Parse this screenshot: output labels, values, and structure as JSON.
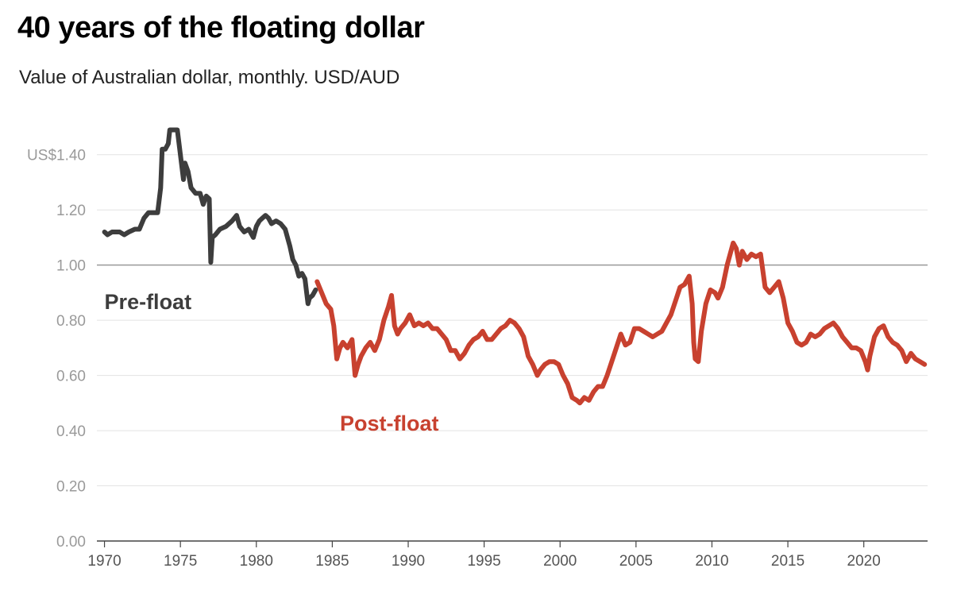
{
  "header": {
    "title": "40 years of the floating dollar",
    "subtitle": "Value of Australian dollar, monthly. USD/AUD"
  },
  "colors": {
    "pre_float": "#3d3d3d",
    "post_float": "#c8412f",
    "grid": "#e3e3e3",
    "reference": "#999999"
  },
  "chart_data": {
    "type": "line",
    "title": "40 years of the floating dollar",
    "subtitle": "Value of Australian dollar, monthly. USD/AUD",
    "xlabel": "",
    "ylabel": "",
    "xlim": [
      1969.5,
      2024.2
    ],
    "ylim": [
      0,
      1.5
    ],
    "y_ticks": [
      0.0,
      0.2,
      0.4,
      0.6,
      0.8,
      1.0,
      1.2,
      1.4
    ],
    "y_tick_labels": [
      "0.00",
      "0.20",
      "0.40",
      "0.60",
      "0.80",
      "1.00",
      "1.20",
      "US$1.40"
    ],
    "x_ticks": [
      1970,
      1975,
      1980,
      1985,
      1990,
      1995,
      2000,
      2005,
      2010,
      2015,
      2020
    ],
    "x_tick_labels": [
      "1970",
      "1975",
      "1980",
      "1985",
      "1990",
      "1995",
      "2000",
      "2005",
      "2010",
      "2015",
      "2020"
    ],
    "reference_line": 1.0,
    "annotations": [
      {
        "text": "Pre-float",
        "series": "Pre-float",
        "x": 1970.0,
        "y": 0.84
      },
      {
        "text": "Post-float",
        "series": "Post-float",
        "x": 1985.5,
        "y": 0.4
      }
    ],
    "series": [
      {
        "name": "Pre-float",
        "color": "#3d3d3d",
        "x": [
          1970.0,
          1970.2,
          1970.5,
          1971.0,
          1971.3,
          1971.6,
          1972.0,
          1972.3,
          1972.6,
          1972.9,
          1973.2,
          1973.5,
          1973.7,
          1973.8,
          1974.0,
          1974.2,
          1974.3,
          1974.5,
          1974.8,
          1975.2,
          1975.3,
          1975.5,
          1975.7,
          1976.0,
          1976.3,
          1976.5,
          1976.7,
          1976.9,
          1977.0,
          1977.1,
          1977.3,
          1977.6,
          1978.0,
          1978.4,
          1978.7,
          1978.9,
          1979.2,
          1979.5,
          1979.8,
          1980.0,
          1980.2,
          1980.4,
          1980.6,
          1980.8,
          1981.0,
          1981.3,
          1981.6,
          1981.9,
          1982.2,
          1982.4,
          1982.6,
          1982.8,
          1983.0,
          1983.2,
          1983.4,
          1983.5,
          1983.7,
          1983.9
        ],
        "values": [
          1.12,
          1.11,
          1.12,
          1.12,
          1.11,
          1.12,
          1.13,
          1.13,
          1.17,
          1.19,
          1.19,
          1.19,
          1.28,
          1.42,
          1.42,
          1.44,
          1.49,
          1.49,
          1.49,
          1.31,
          1.37,
          1.34,
          1.28,
          1.26,
          1.26,
          1.22,
          1.25,
          1.24,
          1.01,
          1.1,
          1.11,
          1.13,
          1.14,
          1.16,
          1.18,
          1.14,
          1.12,
          1.13,
          1.1,
          1.14,
          1.16,
          1.17,
          1.18,
          1.17,
          1.15,
          1.16,
          1.15,
          1.13,
          1.07,
          1.02,
          1.0,
          0.96,
          0.97,
          0.95,
          0.86,
          0.88,
          0.89,
          0.91
        ]
      },
      {
        "name": "Post-float",
        "color": "#c8412f",
        "x": [
          1984.0,
          1984.3,
          1984.6,
          1984.9,
          1985.1,
          1985.3,
          1985.5,
          1985.7,
          1986.0,
          1986.3,
          1986.5,
          1986.7,
          1986.9,
          1987.2,
          1987.5,
          1987.8,
          1988.1,
          1988.4,
          1988.7,
          1988.9,
          1989.1,
          1989.3,
          1989.5,
          1989.8,
          1990.1,
          1990.4,
          1990.7,
          1991.0,
          1991.3,
          1991.6,
          1991.9,
          1992.2,
          1992.5,
          1992.8,
          1993.1,
          1993.4,
          1993.7,
          1994.0,
          1994.3,
          1994.6,
          1994.9,
          1995.2,
          1995.5,
          1995.8,
          1996.1,
          1996.4,
          1996.7,
          1997.0,
          1997.3,
          1997.6,
          1997.9,
          1998.2,
          1998.5,
          1998.7,
          1999.0,
          1999.3,
          1999.6,
          1999.9,
          2000.2,
          2000.5,
          2000.8,
          2001.1,
          2001.3,
          2001.6,
          2001.9,
          2002.2,
          2002.5,
          2002.8,
          2003.1,
          2003.4,
          2003.7,
          2004.0,
          2004.3,
          2004.6,
          2004.9,
          2005.2,
          2005.5,
          2005.8,
          2006.1,
          2006.4,
          2006.7,
          2007.0,
          2007.3,
          2007.6,
          2007.9,
          2008.2,
          2008.5,
          2008.7,
          2008.8,
          2008.9,
          2009.1,
          2009.3,
          2009.6,
          2009.9,
          2010.2,
          2010.4,
          2010.7,
          2011.0,
          2011.2,
          2011.4,
          2011.6,
          2011.8,
          2012.0,
          2012.3,
          2012.6,
          2012.9,
          2013.2,
          2013.5,
          2013.8,
          2014.1,
          2014.4,
          2014.7,
          2015.0,
          2015.3,
          2015.6,
          2015.9,
          2016.2,
          2016.5,
          2016.8,
          2017.1,
          2017.4,
          2017.7,
          2018.0,
          2018.3,
          2018.6,
          2018.9,
          2019.2,
          2019.5,
          2019.8,
          2020.1,
          2020.25,
          2020.4,
          2020.7,
          2021.0,
          2021.3,
          2021.6,
          2021.9,
          2022.2,
          2022.5,
          2022.8,
          2023.1,
          2023.4,
          2023.7,
          2024.0
        ],
        "values": [
          0.94,
          0.9,
          0.86,
          0.84,
          0.78,
          0.66,
          0.7,
          0.72,
          0.7,
          0.73,
          0.6,
          0.64,
          0.67,
          0.7,
          0.72,
          0.69,
          0.73,
          0.8,
          0.85,
          0.89,
          0.78,
          0.75,
          0.77,
          0.79,
          0.82,
          0.78,
          0.79,
          0.78,
          0.79,
          0.77,
          0.77,
          0.75,
          0.73,
          0.69,
          0.69,
          0.66,
          0.68,
          0.71,
          0.73,
          0.74,
          0.76,
          0.73,
          0.73,
          0.75,
          0.77,
          0.78,
          0.8,
          0.79,
          0.77,
          0.74,
          0.67,
          0.64,
          0.6,
          0.62,
          0.64,
          0.65,
          0.65,
          0.64,
          0.6,
          0.57,
          0.52,
          0.51,
          0.5,
          0.52,
          0.51,
          0.54,
          0.56,
          0.56,
          0.6,
          0.65,
          0.7,
          0.75,
          0.71,
          0.72,
          0.77,
          0.77,
          0.76,
          0.75,
          0.74,
          0.75,
          0.76,
          0.79,
          0.82,
          0.87,
          0.92,
          0.93,
          0.96,
          0.86,
          0.72,
          0.66,
          0.65,
          0.76,
          0.86,
          0.91,
          0.9,
          0.88,
          0.92,
          1.0,
          1.04,
          1.08,
          1.06,
          1.0,
          1.05,
          1.02,
          1.04,
          1.03,
          1.04,
          0.92,
          0.9,
          0.92,
          0.94,
          0.88,
          0.79,
          0.76,
          0.72,
          0.71,
          0.72,
          0.75,
          0.74,
          0.75,
          0.77,
          0.78,
          0.79,
          0.77,
          0.74,
          0.72,
          0.7,
          0.7,
          0.69,
          0.65,
          0.62,
          0.67,
          0.74,
          0.77,
          0.78,
          0.74,
          0.72,
          0.71,
          0.69,
          0.65,
          0.68,
          0.66,
          0.65,
          0.64
        ]
      }
    ]
  }
}
